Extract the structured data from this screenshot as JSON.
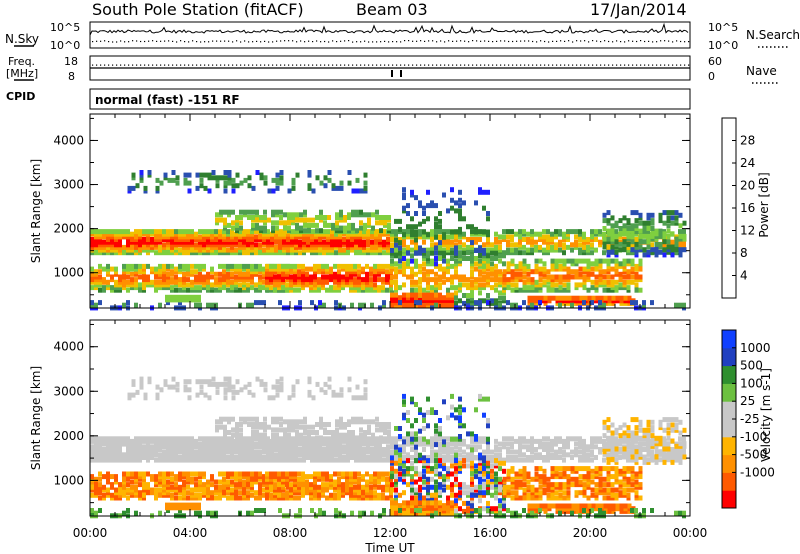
{
  "header": {
    "station": "South Pole Station (fitACF)",
    "beam": "Beam 03",
    "date": "17/Jan/2014"
  },
  "noise_panel": {
    "left_label": "N.Sky",
    "right_label": "N.Search",
    "left_ticks": [
      "10^5",
      "10^0"
    ],
    "right_ticks": [
      "10^5",
      "10^0"
    ]
  },
  "freq_panel": {
    "left_label_1": "Freq.",
    "left_label_2": "[MHz]",
    "right_label": "Nave",
    "left_ticks": [
      "18",
      "8"
    ],
    "right_ticks": [
      "60",
      "0"
    ]
  },
  "cpid": {
    "label": "CPID",
    "text": "normal (fast) -151 RF"
  },
  "colors": {
    "power": [
      "#1f1fff",
      "#2a4fb0",
      "#2f7f2f",
      "#4f9f4f",
      "#7fcf3f",
      "#f0c000",
      "#ff9000",
      "#ff5a00",
      "#ff0000"
    ],
    "velocity": [
      "#ff0000",
      "#ff5a00",
      "#ff9000",
      "#ffb400",
      "#c8c8c8",
      "#c8c8c8",
      "#6cc040",
      "#2f8f2f",
      "#2040c0",
      "#1040ff"
    ]
  },
  "chart_data": [
    {
      "type": "heatmap",
      "quantity": "Power",
      "xlabel": "",
      "ylabel": "Slant Range [km]",
      "x_domain_hours": [
        0,
        24
      ],
      "ylim": [
        200,
        4600
      ],
      "yticks": [
        1000,
        2000,
        3000,
        4000
      ],
      "colorbar": {
        "label": "Power [dB]",
        "range": [
          0,
          32
        ],
        "ticks": [
          4,
          8,
          12,
          16,
          20,
          24,
          28
        ]
      }
    },
    {
      "type": "heatmap",
      "quantity": "Velocity",
      "xlabel": "Time UT",
      "ylabel": "Slant Range [km]",
      "x_domain_hours": [
        0,
        24
      ],
      "ylim": [
        200,
        4600
      ],
      "yticks": [
        1000,
        2000,
        3000,
        4000
      ],
      "xticks": [
        "00:00",
        "04:00",
        "08:00",
        "12:00",
        "16:00",
        "20:00",
        "00:00"
      ],
      "colorbar": {
        "label": "Velocity [m s-1]",
        "ticks": [
          "1000",
          "500",
          "100",
          "25",
          "-25",
          "-100",
          "-500",
          "-1000"
        ]
      }
    }
  ]
}
